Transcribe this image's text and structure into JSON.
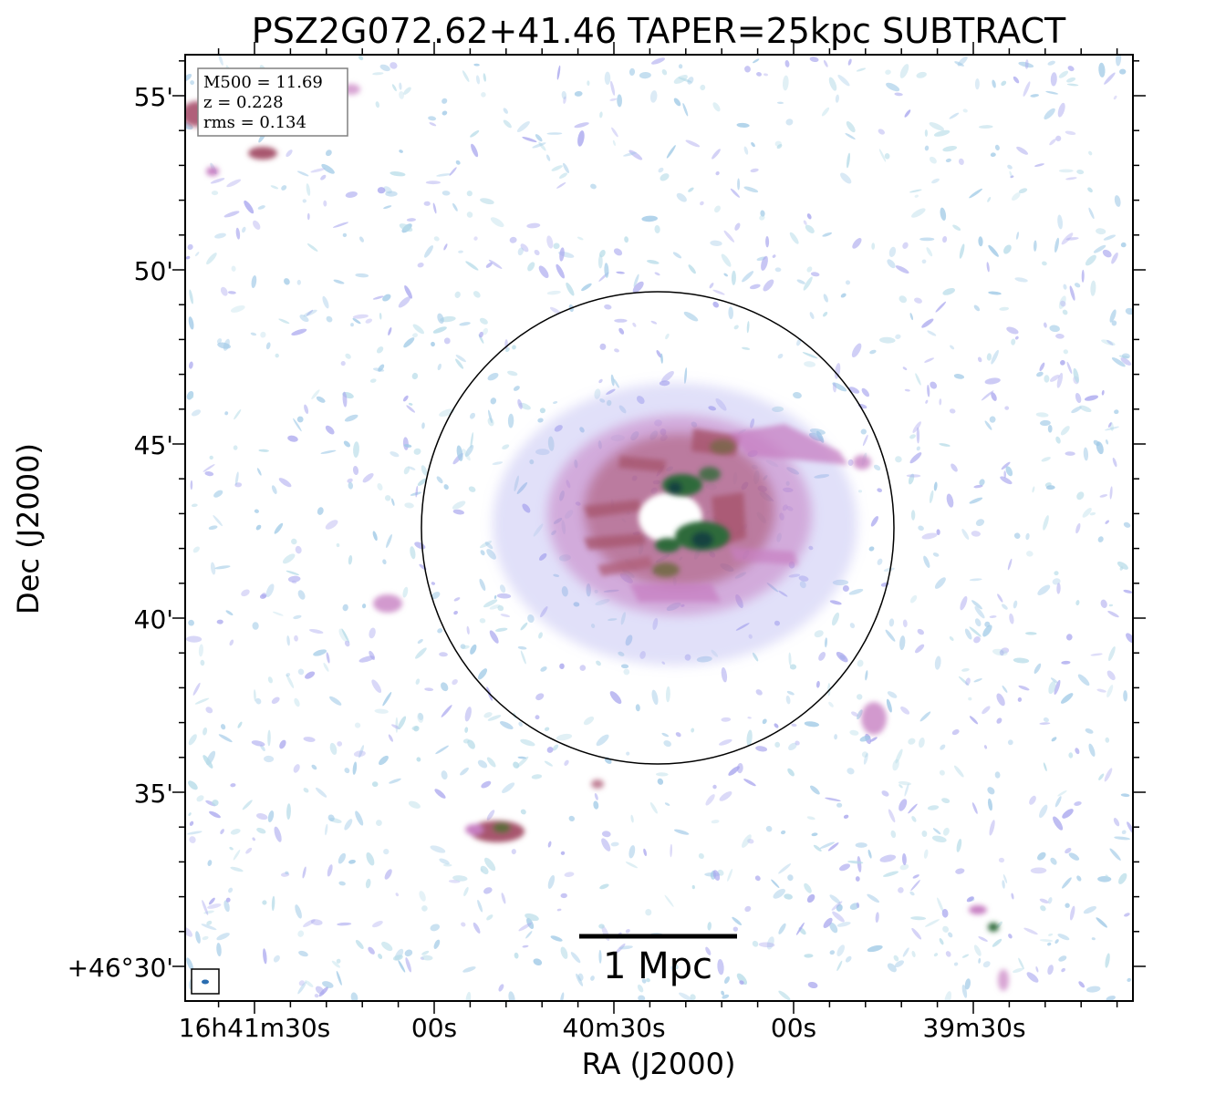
{
  "figure": {
    "title": "PSZ2G072.62+41.46 TAPER=25kpc SUBTRACT",
    "xlabel": "RA (J2000)",
    "ylabel": "Dec (J2000)",
    "info_box": {
      "m500": "M500 = 11.69",
      "z": "z = 0.228",
      "rms": "rms = 0.134"
    },
    "scalebar_label": "1 Mpc",
    "x_ticks": [
      "16h41m30s",
      "00s",
      "40m30s",
      "00s",
      "39m30s"
    ],
    "y_ticks": [
      "55'",
      "50'",
      "45'",
      "40'",
      "35'",
      "+46°30'"
    ],
    "colors": {
      "faint_emission": "#9fc9e6",
      "low_emission": "#a9a6ee",
      "mid_emission": "#c77fc2",
      "high_emission": "#a8566e",
      "peak_emission": "#2f6b3a",
      "core_emission": "#15433f"
    }
  }
}
